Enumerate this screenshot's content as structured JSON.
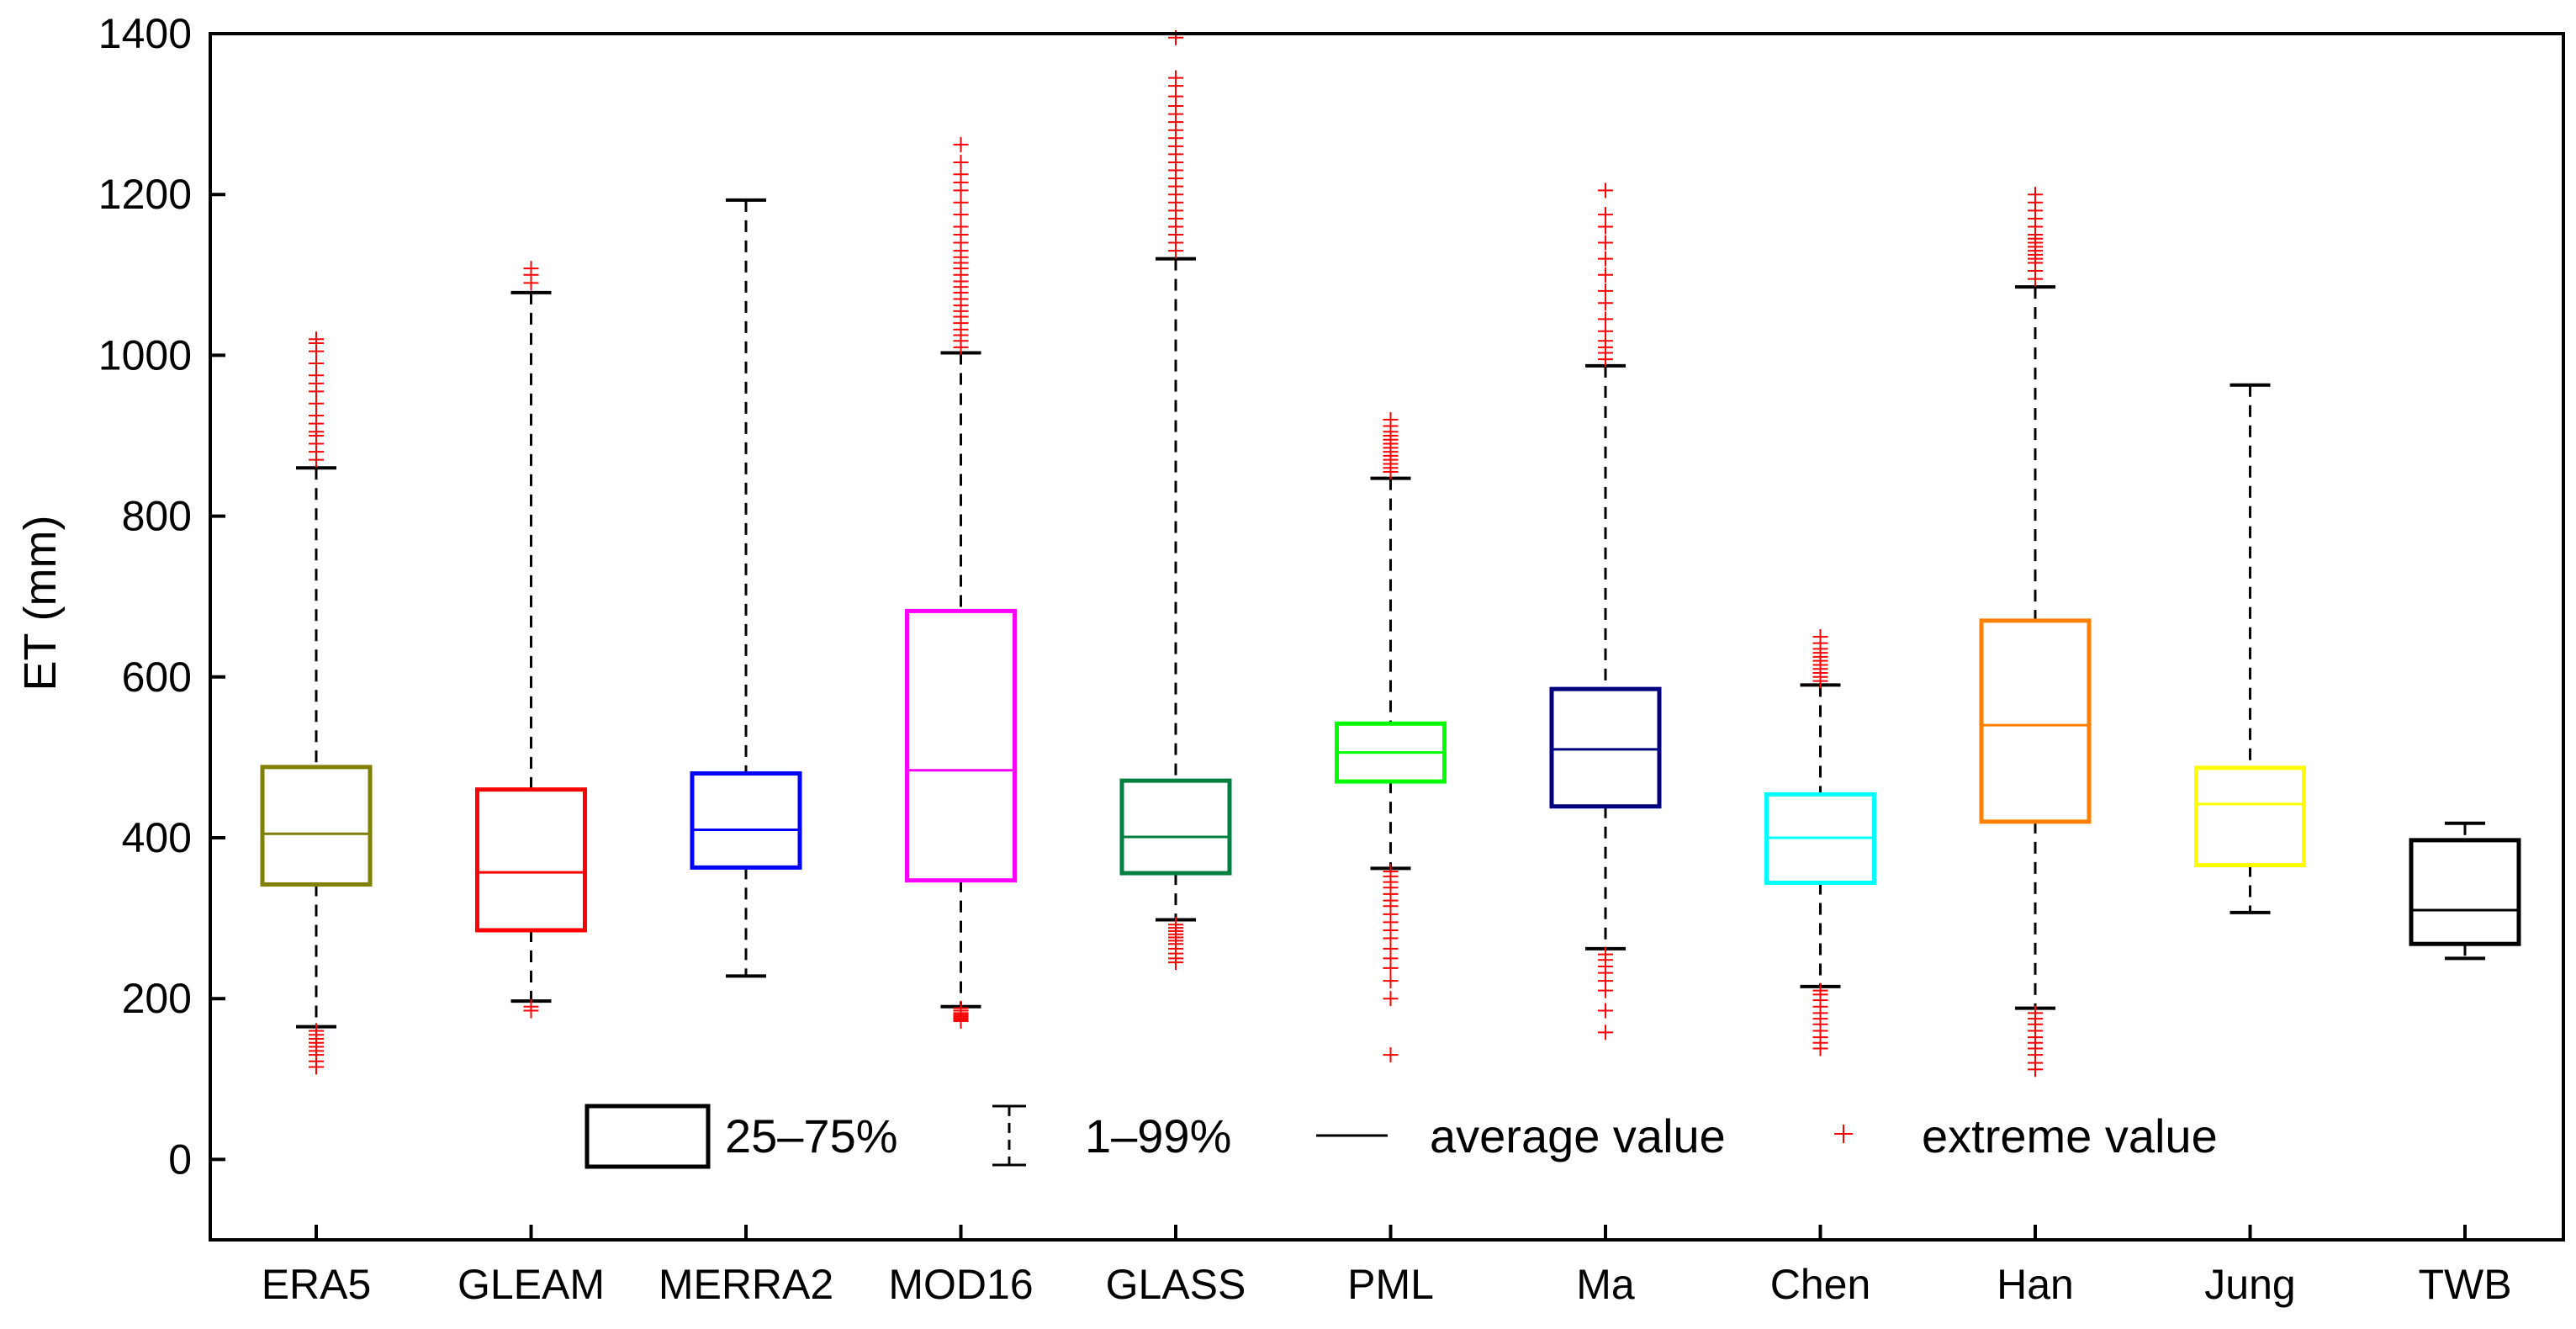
{
  "chart_data": {
    "type": "box",
    "title": "",
    "xlabel": "",
    "ylabel": "ET (mm)",
    "ylim": [
      -100,
      1400
    ],
    "yticks": [
      0,
      200,
      400,
      600,
      800,
      1000,
      1200,
      1400
    ],
    "grid": false,
    "outlier_color": "#ff0000",
    "categories": [
      "ERA5",
      "GLEAM",
      "MERRA2",
      "MOD16",
      "GLASS",
      "PML",
      "Ma",
      "Chen",
      "Han",
      "Jung",
      "TWB"
    ],
    "boxes": [
      {
        "name": "ERA5",
        "color": "#808000",
        "q1": 342,
        "q3": 488,
        "average": 405,
        "p1": 165,
        "p99": 860,
        "extremes_high": [
          870,
          880,
          890,
          900,
          905,
          915,
          925,
          940,
          955,
          965,
          975,
          990,
          1005,
          1015,
          1020
        ],
        "extremes_low": [
          160,
          155,
          150,
          145,
          140,
          135,
          130,
          122,
          115
        ]
      },
      {
        "name": "GLEAM",
        "color": "#ff0000",
        "q1": 285,
        "q3": 460,
        "average": 357,
        "p1": 197,
        "p99": 1078,
        "extremes_high": [
          1090,
          1100,
          1108
        ],
        "extremes_low": [
          190,
          185
        ]
      },
      {
        "name": "MERRA2",
        "color": "#0000ff",
        "q1": 363,
        "q3": 480,
        "average": 410,
        "p1": 228,
        "p99": 1193,
        "extremes_high": [],
        "extremes_low": []
      },
      {
        "name": "MOD16",
        "color": "#ff00ff",
        "q1": 347,
        "q3": 682,
        "average": 484,
        "p1": 190,
        "p99": 1003,
        "extremes_high": [
          1010,
          1018,
          1025,
          1032,
          1040,
          1048,
          1055,
          1062,
          1070,
          1078,
          1085,
          1092,
          1100,
          1108,
          1115,
          1122,
          1130,
          1140,
          1150,
          1160,
          1175,
          1190,
          1205,
          1215,
          1225,
          1240,
          1262
        ],
        "extremes_low": [
          188,
          185,
          182,
          180,
          178,
          176,
          174,
          172
        ]
      },
      {
        "name": "GLASS",
        "color": "#008040",
        "q1": 356,
        "q3": 471,
        "average": 401,
        "p1": 298,
        "p99": 1120,
        "extremes_high": [
          1130,
          1140,
          1150,
          1160,
          1170,
          1180,
          1190,
          1200,
          1210,
          1220,
          1230,
          1240,
          1250,
          1260,
          1270,
          1280,
          1290,
          1300,
          1310,
          1322,
          1335,
          1345,
          1395
        ],
        "extremes_low": [
          292,
          288,
          284,
          280,
          276,
          272,
          268,
          262,
          256,
          250,
          245
        ]
      },
      {
        "name": "PML",
        "color": "#00ff00",
        "q1": 470,
        "q3": 542,
        "average": 506,
        "p1": 362,
        "p99": 847,
        "extremes_high": [
          855,
          860,
          865,
          870,
          875,
          880,
          885,
          890,
          895,
          900,
          905,
          912,
          920
        ],
        "extremes_low": [
          358,
          352,
          345,
          338,
          330,
          322,
          315,
          305,
          295,
          285,
          275,
          262,
          250,
          238,
          222,
          200,
          130
        ]
      },
      {
        "name": "Ma",
        "color": "#000080",
        "q1": 439,
        "q3": 585,
        "average": 510,
        "p1": 262,
        "p99": 987,
        "extremes_high": [
          995,
          1003,
          1010,
          1018,
          1030,
          1045,
          1065,
          1080,
          1100,
          1120,
          1140,
          1160,
          1175,
          1205
        ],
        "extremes_low": [
          255,
          248,
          240,
          232,
          222,
          210,
          185,
          158
        ]
      },
      {
        "name": "Chen",
        "color": "#00ffff",
        "q1": 344,
        "q3": 454,
        "average": 400,
        "p1": 215,
        "p99": 590,
        "extremes_high": [
          595,
          600,
          605,
          610,
          615,
          620,
          625,
          630,
          635,
          642,
          650
        ],
        "extremes_low": [
          210,
          205,
          198,
          190,
          182,
          175,
          168,
          160,
          152,
          145,
          138
        ]
      },
      {
        "name": "Han",
        "color": "#ff8000",
        "q1": 420,
        "q3": 670,
        "average": 540,
        "p1": 188,
        "p99": 1085,
        "extremes_high": [
          1095,
          1105,
          1115,
          1120,
          1125,
          1130,
          1135,
          1140,
          1145,
          1150,
          1160,
          1170,
          1180,
          1190,
          1200
        ],
        "extremes_low": [
          182,
          175,
          168,
          160,
          152,
          145,
          138,
          130,
          120,
          112
        ]
      },
      {
        "name": "Jung",
        "color": "#ffff00",
        "q1": 366,
        "q3": 487,
        "average": 442,
        "p1": 307,
        "p99": 963,
        "extremes_high": [],
        "extremes_low": []
      },
      {
        "name": "TWB",
        "color": "#000000",
        "q1": 268,
        "q3": 397,
        "average": 310,
        "p1": 250,
        "p99": 418,
        "extremes_high": [],
        "extremes_low": []
      }
    ],
    "legend": {
      "placement": "bottom-center",
      "entries": [
        {
          "symbol": "box",
          "label": "25–75%"
        },
        {
          "symbol": "whisker",
          "label": "1–99%"
        },
        {
          "symbol": "line",
          "label": "average value"
        },
        {
          "symbol": "plus",
          "label": "extreme value"
        }
      ]
    }
  }
}
